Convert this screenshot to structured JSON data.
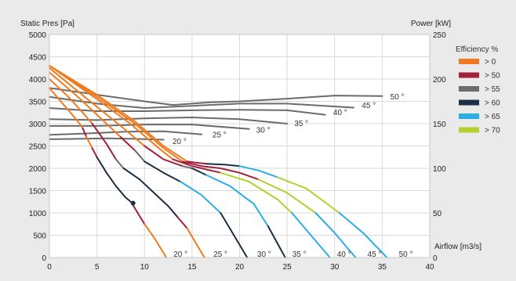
{
  "chart_data": {
    "type": "line",
    "title": "",
    "y_left_label": "Static Pres [Pa]",
    "y_right_label": "Power [kW]",
    "x_label": "Airflow [m3/s]",
    "xlim": [
      0,
      40
    ],
    "ylim_left": [
      0,
      5000
    ],
    "ylim_right": [
      0,
      250
    ],
    "x_ticks": [
      0,
      5,
      10,
      15,
      20,
      25,
      30,
      35,
      40
    ],
    "y_left_ticks": [
      0,
      500,
      1000,
      1500,
      2000,
      2500,
      3000,
      3500,
      4000,
      4500,
      5000
    ],
    "y_right_ticks": [
      0,
      50,
      100,
      150,
      200,
      250
    ],
    "grid": true,
    "legend": {
      "title": "Efficiency %",
      "placement": "top-right",
      "entries": [
        {
          "label": "> 0",
          "color": "#f07b1f"
        },
        {
          "label": "> 50",
          "color": "#a3213d"
        },
        {
          "label": "> 55",
          "color": "#6b6b6b"
        },
        {
          "label": "> 60",
          "color": "#1c2f44"
        },
        {
          "label": "> 65",
          "color": "#2aaee6"
        },
        {
          "label": "> 70",
          "color": "#b6cf2e"
        }
      ]
    },
    "pressure_curves": [
      {
        "label": "20 °",
        "label_at": [
          12.8,
          0
        ],
        "segments": [
          {
            "color": "#f07b1f",
            "points": [
              [
                0,
                3800
              ],
              [
                1,
                3550
              ],
              [
                2,
                3300
              ],
              [
                3,
                3050
              ],
              [
                3.5,
                2900
              ]
            ]
          },
          {
            "color": "#a3213d",
            "points": [
              [
                3.5,
                2900
              ],
              [
                3.9,
                2700
              ]
            ]
          },
          {
            "color": "#f07b1f",
            "points": [
              [
                3.9,
                2700
              ],
              [
                4.5,
                2450
              ]
            ]
          },
          {
            "color": "#a3213d",
            "points": [
              [
                4.5,
                2450
              ],
              [
                5,
                2250
              ]
            ]
          },
          {
            "color": "#1c2f44",
            "points": [
              [
                5,
                2250
              ],
              [
                6,
                1900
              ],
              [
                7,
                1600
              ],
              [
                8,
                1350
              ],
              [
                8.6,
                1240
              ]
            ]
          },
          {
            "color": "#a3213d",
            "points": [
              [
                8.6,
                1240
              ],
              [
                10,
                750
              ]
            ]
          },
          {
            "color": "#f07b1f",
            "points": [
              [
                10,
                750
              ],
              [
                11,
                450
              ],
              [
                12.3,
                0
              ]
            ]
          }
        ]
      },
      {
        "label": "25 °",
        "label_at": [
          17,
          0
        ],
        "segments": [
          {
            "color": "#f07b1f",
            "points": [
              [
                0,
                4000
              ],
              [
                2,
                3600
              ],
              [
                3.5,
                3250
              ],
              [
                4.5,
                3000
              ]
            ]
          },
          {
            "color": "#a3213d",
            "points": [
              [
                4.5,
                3000
              ],
              [
                6,
                2550
              ],
              [
                7,
                2200
              ]
            ]
          },
          {
            "color": "#6b6b6b",
            "points": [
              [
                7,
                2200
              ],
              [
                7.8,
                2000
              ]
            ]
          },
          {
            "color": "#1c2f44",
            "points": [
              [
                7.8,
                2000
              ],
              [
                9.5,
                1750
              ],
              [
                11,
                1450
              ],
              [
                12.5,
                1150
              ],
              [
                13.5,
                900
              ]
            ]
          },
          {
            "color": "#a3213d",
            "points": [
              [
                13.5,
                900
              ],
              [
                14.5,
                650
              ]
            ]
          },
          {
            "color": "#f07b1f",
            "points": [
              [
                14.5,
                650
              ],
              [
                16.3,
                0
              ]
            ]
          }
        ]
      },
      {
        "label": "30 °",
        "label_at": [
          21.6,
          0
        ],
        "segments": [
          {
            "color": "#f07b1f",
            "points": [
              [
                0,
                4150
              ],
              [
                3,
                3600
              ],
              [
                5.5,
                3100
              ],
              [
                7.5,
                2700
              ]
            ]
          },
          {
            "color": "#a3213d",
            "points": [
              [
                7.5,
                2700
              ],
              [
                9,
                2400
              ]
            ]
          },
          {
            "color": "#6b6b6b",
            "points": [
              [
                9,
                2400
              ],
              [
                10,
                2150
              ]
            ]
          },
          {
            "color": "#1c2f44",
            "points": [
              [
                10,
                2150
              ],
              [
                12,
                1900
              ],
              [
                13.8,
                1700
              ]
            ]
          },
          {
            "color": "#2aaee6",
            "points": [
              [
                13.8,
                1700
              ],
              [
                16,
                1400
              ],
              [
                18,
                1000
              ]
            ]
          },
          {
            "color": "#1c2f44",
            "points": [
              [
                18,
                1000
              ],
              [
                20.8,
                0
              ]
            ]
          }
        ]
      },
      {
        "label": "35 °",
        "label_at": [
          25.3,
          0
        ],
        "segments": [
          {
            "color": "#f07b1f",
            "points": [
              [
                0,
                4250
              ],
              [
                4,
                3550
              ],
              [
                7.5,
                2950
              ],
              [
                10,
                2500
              ]
            ]
          },
          {
            "color": "#a3213d",
            "points": [
              [
                10,
                2500
              ],
              [
                12,
                2200
              ],
              [
                14,
                2050
              ]
            ]
          },
          {
            "color": "#6b6b6b",
            "points": [
              [
                14,
                2050
              ],
              [
                15,
                2000
              ]
            ]
          },
          {
            "color": "#1c2f44",
            "points": [
              [
                15,
                2000
              ],
              [
                16.5,
                1850
              ]
            ]
          },
          {
            "color": "#2aaee6",
            "points": [
              [
                16.5,
                1850
              ],
              [
                19,
                1600
              ],
              [
                21.5,
                1200
              ],
              [
                23,
                700
              ]
            ]
          },
          {
            "color": "#1c2f44",
            "points": [
              [
                23,
                700
              ],
              [
                24.8,
                0
              ]
            ]
          }
        ]
      },
      {
        "label": "40 °",
        "label_at": [
          30,
          0
        ],
        "segments": [
          {
            "color": "#f07b1f",
            "points": [
              [
                0,
                4300
              ],
              [
                5,
                3550
              ],
              [
                8.5,
                3000
              ],
              [
                11.5,
                2450
              ],
              [
                13,
                2200
              ]
            ]
          },
          {
            "color": "#a3213d",
            "points": [
              [
                13,
                2200
              ],
              [
                15,
                2050
              ],
              [
                18,
                1900
              ]
            ]
          },
          {
            "color": "#b6cf2e",
            "points": [
              [
                18,
                1900
              ],
              [
                21,
                1700
              ],
              [
                24,
                1300
              ],
              [
                25.5,
                1000
              ]
            ]
          },
          {
            "color": "#2aaee6",
            "points": [
              [
                25.5,
                1000
              ],
              [
                27.5,
                500
              ],
              [
                29.5,
                0
              ]
            ]
          }
        ]
      },
      {
        "label": "45 °",
        "label_at": [
          33.2,
          0
        ],
        "segments": [
          {
            "color": "#f07b1f",
            "points": [
              [
                0,
                4300
              ],
              [
                5,
                3600
              ],
              [
                9,
                3000
              ],
              [
                12,
                2450
              ],
              [
                14,
                2150
              ]
            ]
          },
          {
            "color": "#a3213d",
            "points": [
              [
                14,
                2150
              ],
              [
                16,
                2050
              ],
              [
                18,
                2000
              ],
              [
                20,
                1900
              ],
              [
                22,
                1750
              ]
            ]
          },
          {
            "color": "#b6cf2e",
            "points": [
              [
                22,
                1750
              ],
              [
                25,
                1450
              ],
              [
                28,
                1000
              ]
            ]
          },
          {
            "color": "#2aaee6",
            "points": [
              [
                28,
                1000
              ],
              [
                30,
                550
              ],
              [
                32.2,
                0
              ]
            ]
          }
        ]
      },
      {
        "label": "50 °",
        "label_at": [
          36.5,
          0
        ],
        "segments": [
          {
            "color": "#f07b1f",
            "points": [
              [
                0,
                4300
              ],
              [
                5,
                3650
              ],
              [
                9,
                3050
              ],
              [
                12,
                2500
              ],
              [
                14.5,
                2150
              ]
            ]
          },
          {
            "color": "#a3213d",
            "points": [
              [
                14.5,
                2150
              ],
              [
                16.5,
                2100
              ]
            ]
          },
          {
            "color": "#1c2f44",
            "points": [
              [
                16.5,
                2100
              ],
              [
                18.5,
                2080
              ],
              [
                20,
                2050
              ]
            ]
          },
          {
            "color": "#2aaee6",
            "points": [
              [
                20,
                2050
              ],
              [
                22,
                1950
              ],
              [
                24,
                1800
              ]
            ]
          },
          {
            "color": "#b6cf2e",
            "points": [
              [
                24,
                1800
              ],
              [
                27,
                1550
              ],
              [
                30.5,
                1000
              ]
            ]
          },
          {
            "color": "#2aaee6",
            "points": [
              [
                30.5,
                1000
              ],
              [
                33,
                550
              ],
              [
                35.5,
                0
              ]
            ]
          }
        ]
      }
    ],
    "power_curves": [
      {
        "label": "20 °",
        "label_at": [
          12.7,
          2600
        ],
        "points": [
          [
            0,
            2650
          ],
          [
            3,
            2660
          ],
          [
            6,
            2670
          ],
          [
            9,
            2660
          ],
          [
            12,
            2640
          ]
        ]
      },
      {
        "label": "25 °",
        "label_at": [
          16.9,
          2750
        ],
        "points": [
          [
            0,
            2750
          ],
          [
            4,
            2780
          ],
          [
            8,
            2820
          ],
          [
            12,
            2830
          ],
          [
            16,
            2760
          ]
        ]
      },
      {
        "label": "30 °",
        "label_at": [
          21.5,
          2850
        ],
        "points": [
          [
            0,
            2950
          ],
          [
            5,
            2950
          ],
          [
            10,
            2980
          ],
          [
            15,
            2980
          ],
          [
            21,
            2880
          ]
        ]
      },
      {
        "label": "35 °",
        "label_at": [
          25.5,
          3000
        ],
        "points": [
          [
            0,
            3100
          ],
          [
            5,
            3080
          ],
          [
            10,
            3120
          ],
          [
            15,
            3140
          ],
          [
            20,
            3100
          ],
          [
            25,
            3000
          ]
        ]
      },
      {
        "label": "40 °",
        "label_at": [
          29.6,
          3250
        ],
        "points": [
          [
            0,
            3350
          ],
          [
            5,
            3280
          ],
          [
            10,
            3280
          ],
          [
            15,
            3300
          ],
          [
            20,
            3310
          ],
          [
            25,
            3300
          ],
          [
            29,
            3200
          ]
        ]
      },
      {
        "label": "45 °",
        "label_at": [
          32.6,
          3400
        ],
        "points": [
          [
            0,
            3600
          ],
          [
            5,
            3450
          ],
          [
            10,
            3350
          ],
          [
            15,
            3400
          ],
          [
            20,
            3450
          ],
          [
            25,
            3450
          ],
          [
            32,
            3360
          ]
        ]
      },
      {
        "label": "50 °",
        "label_at": [
          35.6,
          3600
        ],
        "points": [
          [
            0,
            3800
          ],
          [
            5,
            3650
          ],
          [
            10,
            3500
          ],
          [
            13,
            3420
          ],
          [
            17,
            3480
          ],
          [
            20,
            3500
          ],
          [
            25,
            3560
          ],
          [
            30,
            3630
          ],
          [
            35,
            3620
          ]
        ]
      }
    ],
    "marker_point": {
      "x": 8.8,
      "y": 1220
    }
  }
}
